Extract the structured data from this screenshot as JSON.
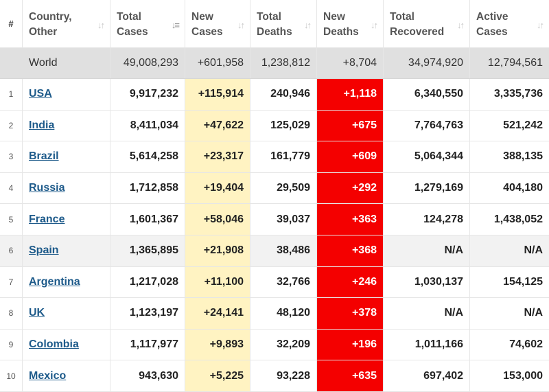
{
  "headers": {
    "num": "#",
    "country": [
      "Country,",
      "Other"
    ],
    "total_cases": [
      "Total",
      "Cases"
    ],
    "new_cases": [
      "New",
      "Cases"
    ],
    "total_deaths": [
      "Total",
      "Deaths"
    ],
    "new_deaths": [
      "New",
      "Deaths"
    ],
    "total_recovered": [
      "Total",
      "Recovered"
    ],
    "active_cases": [
      "Active",
      "Cases"
    ]
  },
  "sort_icon": "sort-arrows-icon",
  "colors": {
    "new_cases_bg": "#fff3c2",
    "new_deaths_bg": "#f40000",
    "link": "#1d5a8a",
    "world_bg": "#e0e0e0"
  },
  "world": {
    "country": "World",
    "total_cases": "49,008,293",
    "new_cases": "+601,958",
    "total_deaths": "1,238,812",
    "new_deaths": "+8,704",
    "total_recovered": "34,974,920",
    "active_cases": "12,794,561"
  },
  "rows": [
    {
      "num": "1",
      "country": "USA",
      "total_cases": "9,917,232",
      "new_cases": "+115,914",
      "total_deaths": "240,946",
      "new_deaths": "+1,118",
      "total_recovered": "6,340,550",
      "active_cases": "3,335,736"
    },
    {
      "num": "2",
      "country": "India",
      "total_cases": "8,411,034",
      "new_cases": "+47,622",
      "total_deaths": "125,029",
      "new_deaths": "+675",
      "total_recovered": "7,764,763",
      "active_cases": "521,242"
    },
    {
      "num": "3",
      "country": "Brazil",
      "total_cases": "5,614,258",
      "new_cases": "+23,317",
      "total_deaths": "161,779",
      "new_deaths": "+609",
      "total_recovered": "5,064,344",
      "active_cases": "388,135"
    },
    {
      "num": "4",
      "country": "Russia",
      "total_cases": "1,712,858",
      "new_cases": "+19,404",
      "total_deaths": "29,509",
      "new_deaths": "+292",
      "total_recovered": "1,279,169",
      "active_cases": "404,180"
    },
    {
      "num": "5",
      "country": "France",
      "total_cases": "1,601,367",
      "new_cases": "+58,046",
      "total_deaths": "39,037",
      "new_deaths": "+363",
      "total_recovered": "124,278",
      "active_cases": "1,438,052"
    },
    {
      "num": "6",
      "country": "Spain",
      "total_cases": "1,365,895",
      "new_cases": "+21,908",
      "total_deaths": "38,486",
      "new_deaths": "+368",
      "total_recovered": "N/A",
      "active_cases": "N/A"
    },
    {
      "num": "7",
      "country": "Argentina",
      "total_cases": "1,217,028",
      "new_cases": "+11,100",
      "total_deaths": "32,766",
      "new_deaths": "+246",
      "total_recovered": "1,030,137",
      "active_cases": "154,125"
    },
    {
      "num": "8",
      "country": "UK",
      "total_cases": "1,123,197",
      "new_cases": "+24,141",
      "total_deaths": "48,120",
      "new_deaths": "+378",
      "total_recovered": "N/A",
      "active_cases": "N/A"
    },
    {
      "num": "9",
      "country": "Colombia",
      "total_cases": "1,117,977",
      "new_cases": "+9,893",
      "total_deaths": "32,209",
      "new_deaths": "+196",
      "total_recovered": "1,011,166",
      "active_cases": "74,602"
    },
    {
      "num": "10",
      "country": "Mexico",
      "total_cases": "943,630",
      "new_cases": "+5,225",
      "total_deaths": "93,228",
      "new_deaths": "+635",
      "total_recovered": "697,402",
      "active_cases": "153,000"
    }
  ]
}
